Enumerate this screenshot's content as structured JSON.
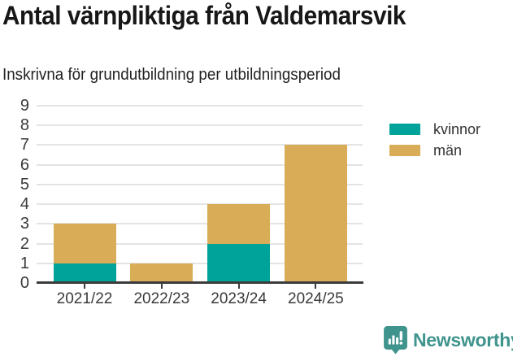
{
  "header": {
    "title": "Antal värnpliktiga från Valdemarsvik",
    "subtitle": "Inskrivna för grundutbildning per utbildningsperiod"
  },
  "chart_data": {
    "type": "bar",
    "stacked": true,
    "title": "Antal värnpliktiga från Valdemarsvik",
    "subtitle": "Inskrivna för grundutbildning per utbildningsperiod",
    "categories": [
      "2021/22",
      "2022/23",
      "2023/24",
      "2024/25"
    ],
    "series": [
      {
        "name": "kvinnor",
        "color": "#00a39a",
        "values": [
          1,
          0,
          2,
          0
        ]
      },
      {
        "name": "män",
        "color": "#d9ac57",
        "values": [
          2,
          1,
          2,
          7
        ]
      }
    ],
    "totals": [
      3,
      1,
      4,
      7
    ],
    "xlabel": "",
    "ylabel": "",
    "ylim": [
      0,
      9
    ],
    "yticks": [
      0,
      1,
      2,
      3,
      4,
      5,
      6,
      7,
      8,
      9
    ],
    "grid": true,
    "legend_position": "right"
  },
  "colors": {
    "axis": "#3b3b3b",
    "grid": "#e4e4e4",
    "tick_text": "#3a3a3a",
    "brand": "#3f948d"
  },
  "footer": {
    "brand": "Newsworthy"
  }
}
